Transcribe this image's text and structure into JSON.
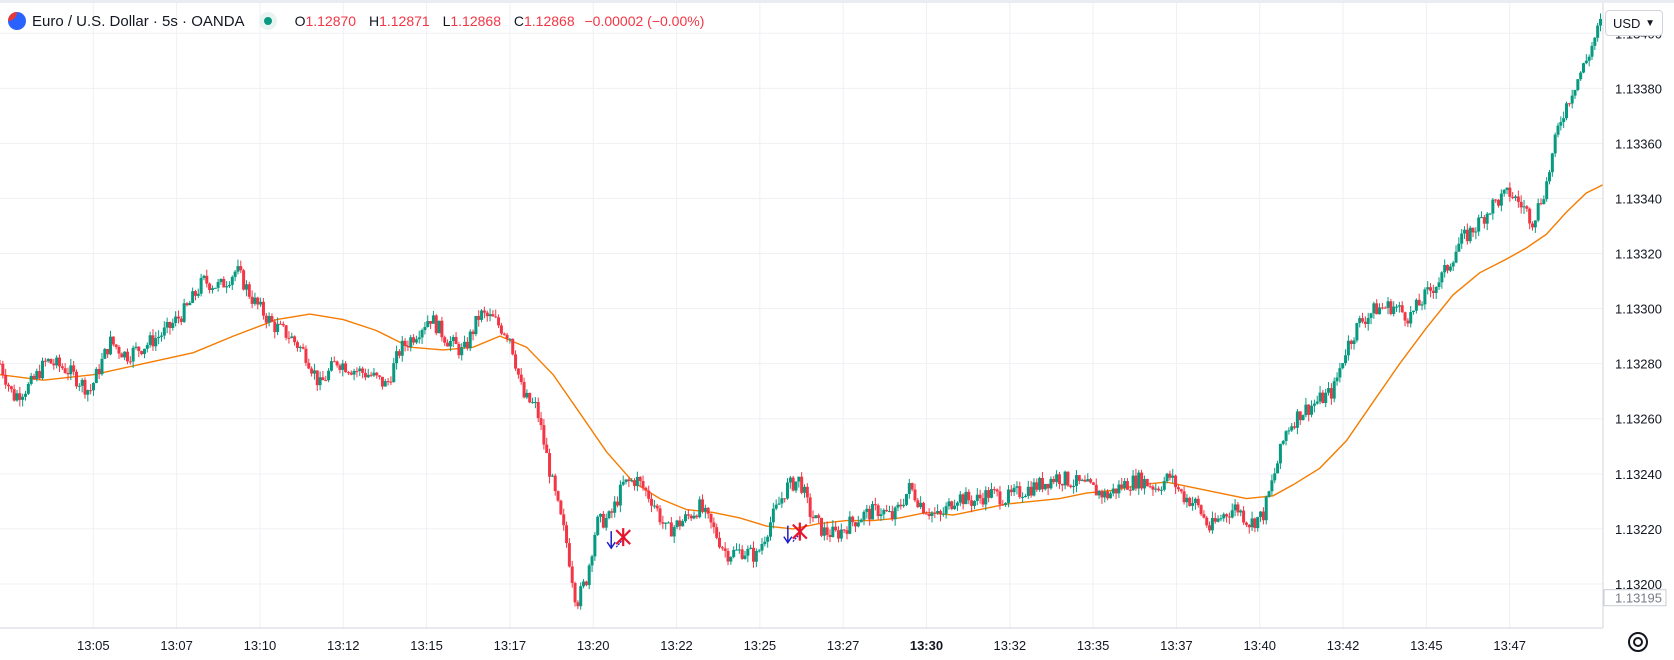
{
  "header": {
    "symbol_title": "Euro / U.S. Dollar · 5s · OANDA",
    "ohlc": {
      "o_key": "O",
      "o": "1.12870",
      "h_key": "H",
      "h": "1.12871",
      "l_key": "L",
      "l": "1.12868",
      "c_key": "C",
      "c": "1.12868",
      "change": "−0.00002 (−0.00%)"
    }
  },
  "currency_selector": {
    "label": "USD"
  },
  "colors": {
    "up": "#089981",
    "down": "#f23645",
    "ma": "#f57c00",
    "grid": "#eef0f4",
    "axis_text": "#131722",
    "marker_arrow": "#1e1ec8",
    "marker_cross": "#e8142c"
  },
  "icons": {
    "chart_settings": "gear-icon",
    "status": "market-open-dot",
    "currency_chevron": "chevron-down-icon"
  },
  "chart_data": {
    "type": "candlestick",
    "ylim": [
      1.13184,
      1.13411
    ],
    "y_ticks": [
      "1.13400",
      "1.13380",
      "1.13360",
      "1.13340",
      "1.13320",
      "1.13300",
      "1.13280",
      "1.13260",
      "1.13240",
      "1.13220",
      "1.13200"
    ],
    "price_label": "1.13195",
    "x_ticks": [
      "13:05",
      "13:07",
      "13:10",
      "13:12",
      "13:15",
      "13:17",
      "13:20",
      "13:22",
      "13:25",
      "13:27",
      "13:30",
      "13:32",
      "13:35",
      "13:37",
      "13:40",
      "13:42",
      "13:45",
      "13:47"
    ],
    "x_tick_minutes": [
      5,
      7.5,
      10,
      12.5,
      15,
      17.5,
      20,
      22.5,
      25,
      27.5,
      30,
      32.5,
      35,
      37.5,
      40,
      42.5,
      45,
      47.5
    ],
    "x_tick_bold": [
      "13:30"
    ],
    "x_range_minutes": [
      2.2,
      50.3
    ],
    "price_path": [
      [
        2.2,
        1.1328
      ],
      [
        2.6,
        1.13268
      ],
      [
        3.1,
        1.13272
      ],
      [
        3.6,
        1.13281
      ],
      [
        4.2,
        1.13278
      ],
      [
        4.9,
        1.1327
      ],
      [
        5.5,
        1.13288
      ],
      [
        6.0,
        1.13283
      ],
      [
        6.6,
        1.13287
      ],
      [
        7.2,
        1.13292
      ],
      [
        7.8,
        1.133
      ],
      [
        8.3,
        1.1331
      ],
      [
        8.8,
        1.13308
      ],
      [
        9.3,
        1.13314
      ],
      [
        9.8,
        1.13303
      ],
      [
        10.4,
        1.13294
      ],
      [
        10.9,
        1.1329
      ],
      [
        11.4,
        1.13283
      ],
      [
        11.8,
        1.13272
      ],
      [
        12.3,
        1.13281
      ],
      [
        12.8,
        1.13278
      ],
      [
        13.3,
        1.13276
      ],
      [
        13.8,
        1.13272
      ],
      [
        14.2,
        1.13285
      ],
      [
        14.6,
        1.1329
      ],
      [
        15.1,
        1.13297
      ],
      [
        15.6,
        1.13289
      ],
      [
        16.1,
        1.13284
      ],
      [
        16.6,
        1.13298
      ],
      [
        17.0,
        1.13296
      ],
      [
        17.5,
        1.1329
      ],
      [
        17.9,
        1.13268
      ],
      [
        18.3,
        1.13264
      ],
      [
        18.8,
        1.13235
      ],
      [
        19.2,
        1.13215
      ],
      [
        19.5,
        1.13193
      ],
      [
        19.8,
        1.13202
      ],
      [
        20.1,
        1.13222
      ],
      [
        20.5,
        1.13224
      ],
      [
        20.9,
        1.13236
      ],
      [
        21.3,
        1.13238
      ],
      [
        21.8,
        1.1323
      ],
      [
        22.2,
        1.13219
      ],
      [
        22.7,
        1.13223
      ],
      [
        23.2,
        1.13228
      ],
      [
        23.6,
        1.1322
      ],
      [
        24.0,
        1.13211
      ],
      [
        24.5,
        1.13212
      ],
      [
        24.9,
        1.1321
      ],
      [
        25.3,
        1.13222
      ],
      [
        25.8,
        1.13235
      ],
      [
        26.2,
        1.13238
      ],
      [
        26.5,
        1.13226
      ],
      [
        26.9,
        1.13219
      ],
      [
        27.3,
        1.13218
      ],
      [
        27.7,
        1.13222
      ],
      [
        28.1,
        1.13225
      ],
      [
        28.6,
        1.13227
      ],
      [
        29.0,
        1.13224
      ],
      [
        29.5,
        1.13235
      ],
      [
        29.9,
        1.13228
      ],
      [
        30.4,
        1.13224
      ],
      [
        30.9,
        1.13232
      ],
      [
        31.4,
        1.1323
      ],
      [
        31.9,
        1.13233
      ],
      [
        32.4,
        1.13231
      ],
      [
        32.9,
        1.13234
      ],
      [
        33.4,
        1.13236
      ],
      [
        33.9,
        1.13239
      ],
      [
        34.4,
        1.13237
      ],
      [
        34.9,
        1.13235
      ],
      [
        35.4,
        1.13232
      ],
      [
        35.9,
        1.13236
      ],
      [
        36.4,
        1.13238
      ],
      [
        36.9,
        1.13235
      ],
      [
        37.3,
        1.13239
      ],
      [
        37.7,
        1.13232
      ],
      [
        38.1,
        1.13229
      ],
      [
        38.5,
        1.1322
      ],
      [
        38.9,
        1.13225
      ],
      [
        39.3,
        1.13228
      ],
      [
        39.7,
        1.13222
      ],
      [
        40.1,
        1.13225
      ],
      [
        40.4,
        1.13238
      ],
      [
        40.8,
        1.13256
      ],
      [
        41.2,
        1.13262
      ],
      [
        41.7,
        1.13266
      ],
      [
        42.2,
        1.1327
      ],
      [
        42.6,
        1.13286
      ],
      [
        43.0,
        1.13295
      ],
      [
        43.5,
        1.133
      ],
      [
        44.0,
        1.13301
      ],
      [
        44.5,
        1.13297
      ],
      [
        45.0,
        1.13305
      ],
      [
        45.5,
        1.13312
      ],
      [
        46.0,
        1.13324
      ],
      [
        46.5,
        1.1333
      ],
      [
        47.0,
        1.13338
      ],
      [
        47.5,
        1.13342
      ],
      [
        47.9,
        1.13337
      ],
      [
        48.2,
        1.13332
      ],
      [
        48.6,
        1.13345
      ],
      [
        49.0,
        1.13368
      ],
      [
        49.4,
        1.1338
      ],
      [
        49.8,
        1.1339
      ],
      [
        50.3,
        1.13406
      ]
    ],
    "ma_line": [
      [
        2.2,
        1.13276
      ],
      [
        3.5,
        1.13274
      ],
      [
        5.0,
        1.13276
      ],
      [
        6.5,
        1.1328
      ],
      [
        8.0,
        1.13284
      ],
      [
        9.2,
        1.1329
      ],
      [
        10.5,
        1.13296
      ],
      [
        11.5,
        1.13298
      ],
      [
        12.5,
        1.13296
      ],
      [
        13.5,
        1.13292
      ],
      [
        14.5,
        1.13286
      ],
      [
        15.5,
        1.13285
      ],
      [
        16.4,
        1.13286
      ],
      [
        17.2,
        1.1329
      ],
      [
        18.0,
        1.13286
      ],
      [
        18.8,
        1.13276
      ],
      [
        19.6,
        1.13262
      ],
      [
        20.4,
        1.13248
      ],
      [
        21.2,
        1.13237
      ],
      [
        22.0,
        1.13231
      ],
      [
        22.8,
        1.13227
      ],
      [
        23.6,
        1.13226
      ],
      [
        24.4,
        1.13224
      ],
      [
        25.2,
        1.13221
      ],
      [
        26.0,
        1.1322
      ],
      [
        26.8,
        1.13222
      ],
      [
        27.6,
        1.13223
      ],
      [
        28.4,
        1.13223
      ],
      [
        29.2,
        1.13224
      ],
      [
        30.0,
        1.13226
      ],
      [
        30.8,
        1.13225
      ],
      [
        31.6,
        1.13227
      ],
      [
        32.4,
        1.13229
      ],
      [
        33.2,
        1.1323
      ],
      [
        34.0,
        1.13231
      ],
      [
        34.8,
        1.13233
      ],
      [
        35.6,
        1.13234
      ],
      [
        36.4,
        1.13236
      ],
      [
        37.2,
        1.13237
      ],
      [
        38.0,
        1.13235
      ],
      [
        38.8,
        1.13233
      ],
      [
        39.6,
        1.13231
      ],
      [
        40.4,
        1.13232
      ],
      [
        41.0,
        1.13236
      ],
      [
        41.8,
        1.13242
      ],
      [
        42.6,
        1.13252
      ],
      [
        43.4,
        1.13266
      ],
      [
        44.2,
        1.1328
      ],
      [
        45.0,
        1.13293
      ],
      [
        45.8,
        1.13305
      ],
      [
        46.6,
        1.13313
      ],
      [
        47.4,
        1.13318
      ],
      [
        48.0,
        1.13322
      ],
      [
        48.6,
        1.13327
      ],
      [
        49.2,
        1.13335
      ],
      [
        49.8,
        1.13342
      ],
      [
        50.3,
        1.13345
      ]
    ],
    "markers": [
      {
        "minute": 20.9,
        "value": 1.13217,
        "kind": "sell-arrow-cross"
      },
      {
        "minute": 26.2,
        "value": 1.13219,
        "kind": "sell-arrow-cross"
      }
    ],
    "grid": true
  }
}
